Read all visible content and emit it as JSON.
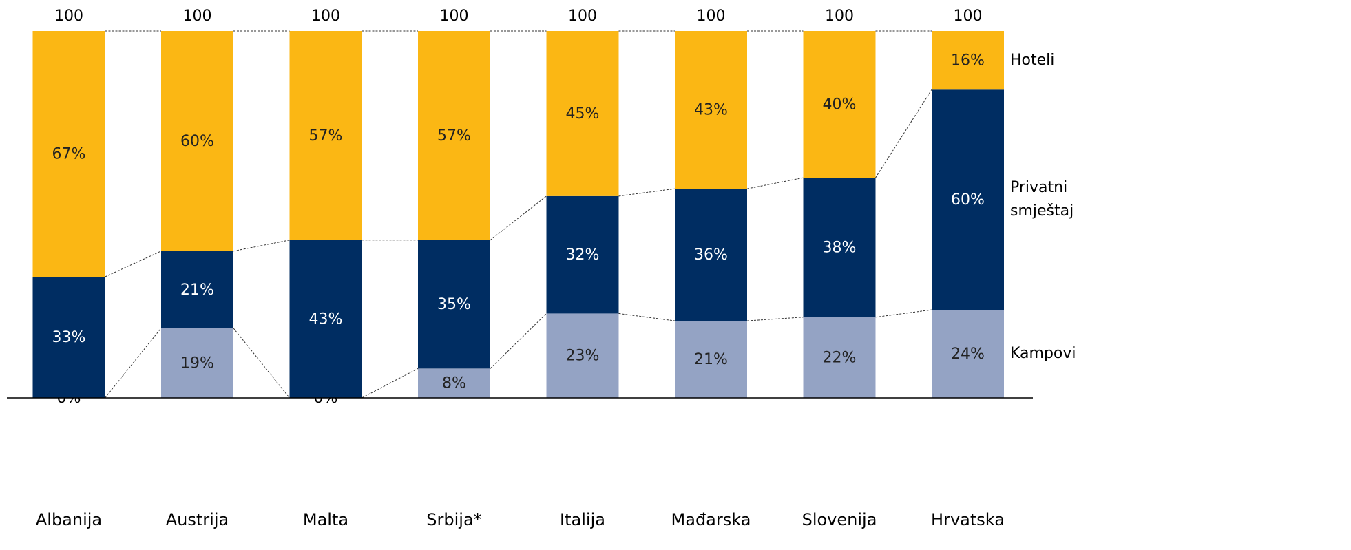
{
  "chart_data": {
    "type": "stacked_bar",
    "categories": [
      "Albanija",
      "Austrija",
      "Malta",
      "Srbija*",
      "Italija",
      "Mađarska",
      "Slovenija",
      "Hrvatska"
    ],
    "totals": [
      100,
      100,
      100,
      100,
      100,
      100,
      100,
      100
    ],
    "series": [
      {
        "name": "Kampovi",
        "color": "#94a3c4",
        "values": [
          0,
          19,
          0,
          8,
          23,
          21,
          22,
          24
        ],
        "value_labels": [
          "0%",
          "19%",
          "0%",
          "8%",
          "23%",
          "21%",
          "22%",
          "24%"
        ]
      },
      {
        "name": "Privatni smještaj",
        "color": "#002d62",
        "values": [
          33,
          21,
          43,
          35,
          32,
          36,
          38,
          60
        ],
        "value_labels": [
          "33%",
          "21%",
          "43%",
          "35%",
          "32%",
          "36%",
          "38%",
          "60%"
        ]
      },
      {
        "name": "Hoteli",
        "color": "#fbb714",
        "values": [
          67,
          60,
          57,
          57,
          45,
          43,
          40,
          16
        ],
        "value_labels": [
          "67%",
          "60%",
          "57%",
          "57%",
          "45%",
          "43%",
          "40%",
          "16%"
        ]
      }
    ],
    "ylim": [
      0,
      100
    ]
  }
}
